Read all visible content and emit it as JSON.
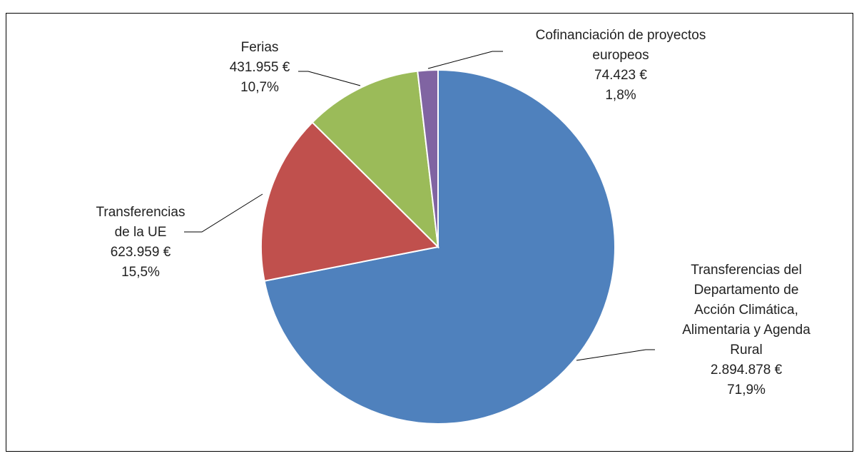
{
  "chart_data": {
    "type": "pie",
    "categories": [
      "Transferencias del Departamento de Acción Climática, Alimentaria y Agenda Rural",
      "Transferencias de la UE",
      "Ferias",
      "Cofinanciación de proyectos europeos"
    ],
    "values": [
      2894878,
      623959,
      431955,
      74423
    ],
    "value_labels": [
      "2.894.878 €",
      "623.959 €",
      "431.955 €",
      "74.423 €"
    ],
    "percent_labels": [
      "71,9%",
      "15,5%",
      "10,7%",
      "1,8%"
    ],
    "colors": [
      "#4f81bd",
      "#c0504d",
      "#9bbb59",
      "#8064a2"
    ]
  }
}
